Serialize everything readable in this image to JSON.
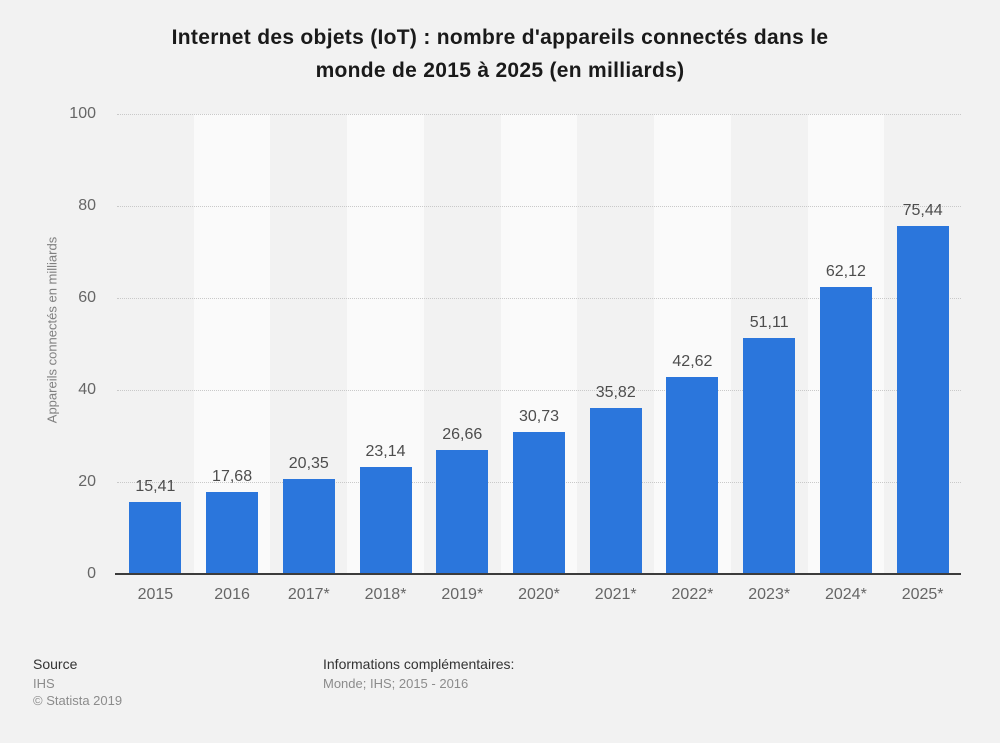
{
  "title": {
    "line1": "Internet des objets (IoT) : nombre d'appareils connectés dans le",
    "line2": "monde de 2015 à 2025 (en milliards)"
  },
  "chart_data": {
    "type": "bar",
    "categories": [
      "2015",
      "2016",
      "2017*",
      "2018*",
      "2019*",
      "2020*",
      "2021*",
      "2022*",
      "2023*",
      "2024*",
      "2025*"
    ],
    "values": [
      15.41,
      17.68,
      20.35,
      23.14,
      26.66,
      30.73,
      35.82,
      42.62,
      51.11,
      62.12,
      75.44
    ],
    "values_display": [
      "15,41",
      "17,68",
      "20,35",
      "23,14",
      "26,66",
      "30,73",
      "35,82",
      "42,62",
      "51,11",
      "62,12",
      "75,44"
    ],
    "title": "Internet des objets (IoT) : nombre d'appareils connectés dans le monde de 2015 à 2025 (en milliards)",
    "xlabel": "",
    "ylabel": "Appareils connectés en milliards",
    "ylim": [
      0,
      100
    ],
    "ytick_step": 20,
    "grid": "horizontal-dotted",
    "legend": "none",
    "bar_color": "#2b76dc",
    "band_color": "#fafafa",
    "background_color": "#f2f2f2"
  },
  "footer": {
    "source_label": "Source",
    "source_value": "IHS",
    "copyright": "© Statista 2019",
    "info_label": "Informations complémentaires:",
    "info_value": "Monde; IHS; 2015 - 2016"
  }
}
